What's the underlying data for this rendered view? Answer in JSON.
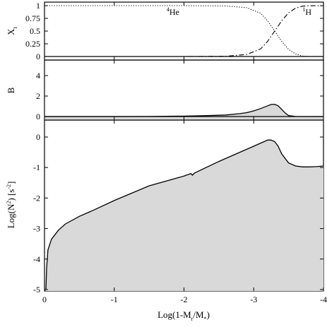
{
  "chart_data": [
    {
      "type": "line",
      "panel": "top",
      "ylabel_main": "X",
      "ylabel_sub": "i",
      "xlim": [
        0,
        -4
      ],
      "ylim": [
        0,
        1
      ],
      "yticks": [
        0,
        0.25,
        0.5,
        0.75,
        1
      ],
      "ytick_labels": [
        "0",
        "0.25",
        "0.5",
        "0.75",
        "1"
      ],
      "series": [
        {
          "name": "He",
          "name_sup": "4",
          "style": "dotted",
          "x": [
            0,
            -1,
            -2,
            -2.6,
            -2.9,
            -3.1,
            -3.2,
            -3.3,
            -3.4,
            -3.5,
            -3.6,
            -3.7,
            -3.8,
            -4
          ],
          "y": [
            1,
            1,
            1,
            0.995,
            0.96,
            0.85,
            0.7,
            0.5,
            0.3,
            0.14,
            0.05,
            0.01,
            0.002,
            0
          ]
        },
        {
          "name": "H",
          "name_sup": "1",
          "style": "dashdot",
          "x": [
            0,
            -1,
            -2,
            -2.6,
            -2.9,
            -3.1,
            -3.2,
            -3.3,
            -3.4,
            -3.5,
            -3.6,
            -3.7,
            -3.8,
            -4
          ],
          "y": [
            0,
            0,
            0,
            0.005,
            0.04,
            0.15,
            0.3,
            0.5,
            0.7,
            0.86,
            0.95,
            0.99,
            0.998,
            1
          ]
        }
      ],
      "annotations": [
        {
          "sup": "4",
          "text": "He",
          "x": -1.75,
          "y": 0.82
        },
        {
          "sup": "1",
          "text": "H",
          "x": -3.7,
          "y": 0.82
        }
      ]
    },
    {
      "type": "area",
      "panel": "middle",
      "ylabel": "B",
      "xlim": [
        0,
        -4
      ],
      "ylim": [
        0,
        4
      ],
      "yticks": [
        0,
        2,
        4
      ],
      "ytick_labels": [
        "0",
        "2",
        "4"
      ],
      "series": [
        {
          "style": "solid-filled",
          "x": [
            0,
            -1,
            -1.5,
            -2,
            -2.3,
            -2.6,
            -2.8,
            -2.9,
            -3.0,
            -3.1,
            -3.2,
            -3.25,
            -3.3,
            -3.35,
            -3.4,
            -3.45,
            -3.5,
            -3.6,
            -4
          ],
          "y": [
            0,
            0,
            0.01,
            0.04,
            0.08,
            0.15,
            0.28,
            0.38,
            0.55,
            0.78,
            1.05,
            1.18,
            1.2,
            1.05,
            0.7,
            0.35,
            0.1,
            0.01,
            0
          ]
        }
      ]
    },
    {
      "type": "area",
      "panel": "bottom",
      "ylabel": "Log(N",
      "ylabel_sup": "2",
      "ylabel_mid": ") [s",
      "ylabel_sup2": "-2",
      "ylabel_end": "]",
      "xlabel": "Log(1-M",
      "xlabel_sub1": "r",
      "xlabel_mid": "/M",
      "xlabel_sub2": "*",
      "xlabel_end": ")",
      "xlim": [
        0,
        -4
      ],
      "ylim": [
        -5,
        0.5
      ],
      "xticks": [
        0,
        -1,
        -2,
        -3,
        -4
      ],
      "xtick_labels": [
        "0",
        "-1",
        "-2",
        "-3",
        "-4"
      ],
      "yticks": [
        -5,
        -4,
        -3,
        -2,
        -1,
        0
      ],
      "ytick_labels": [
        "-5",
        "-4",
        "-3",
        "-2",
        "-1",
        "0"
      ],
      "series": [
        {
          "style": "solid-filled",
          "x": [
            -0.02,
            -0.03,
            -0.05,
            -0.1,
            -0.2,
            -0.3,
            -0.5,
            -0.7,
            -1.0,
            -1.5,
            -2.0,
            -2.1,
            -2.12,
            -2.15,
            -2.5,
            -2.8,
            -3.0,
            -3.1,
            -3.2,
            -3.25,
            -3.3,
            -3.35,
            -3.4,
            -3.5,
            -3.6,
            -3.7,
            -3.8,
            -3.9,
            -4.0
          ],
          "y": [
            -5.0,
            -4.3,
            -3.7,
            -3.35,
            -3.05,
            -2.85,
            -2.6,
            -2.4,
            -2.08,
            -1.6,
            -1.28,
            -1.2,
            -1.25,
            -1.18,
            -0.8,
            -0.5,
            -0.3,
            -0.2,
            -0.1,
            -0.1,
            -0.15,
            -0.3,
            -0.55,
            -0.85,
            -0.95,
            -0.98,
            -0.98,
            -0.97,
            -0.95
          ]
        }
      ]
    }
  ]
}
